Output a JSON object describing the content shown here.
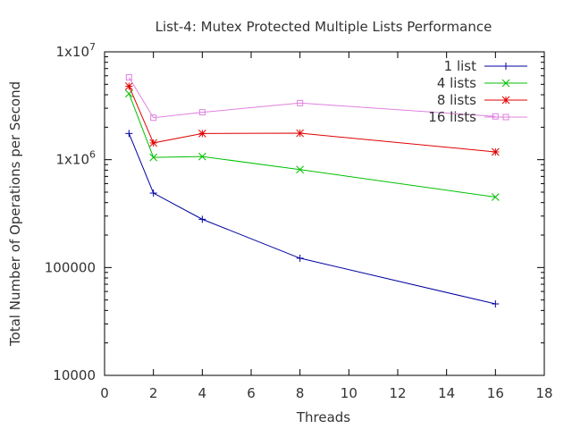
{
  "chart_data": {
    "type": "line",
    "title": "List-4: Mutex Protected Multiple Lists Performance",
    "xlabel": "Threads",
    "ylabel": "Total Number of Operations per Second",
    "xlim": [
      0,
      18
    ],
    "ylim": [
      10000,
      10000000
    ],
    "yscale": "log",
    "grid": false,
    "legend_position": "top-right",
    "x_ticks": [
      {
        "value": 0,
        "label": "0"
      },
      {
        "value": 2,
        "label": "2"
      },
      {
        "value": 4,
        "label": "4"
      },
      {
        "value": 6,
        "label": "6"
      },
      {
        "value": 8,
        "label": "8"
      },
      {
        "value": 10,
        "label": "10"
      },
      {
        "value": 12,
        "label": "12"
      },
      {
        "value": 14,
        "label": "14"
      },
      {
        "value": 16,
        "label": "16"
      },
      {
        "value": 18,
        "label": "18"
      }
    ],
    "y_ticks": [
      {
        "value": 10000,
        "label": "10000",
        "sup": ""
      },
      {
        "value": 100000,
        "label": "100000",
        "sup": ""
      },
      {
        "value": 1000000,
        "label": "1x10",
        "sup": "6"
      },
      {
        "value": 10000000,
        "label": "1x10",
        "sup": "7"
      }
    ],
    "x": [
      1,
      2,
      4,
      8,
      16
    ],
    "series": [
      {
        "name": "1 list",
        "color": "#0000a0",
        "marker": "plus",
        "values": [
          1750000,
          490000,
          280000,
          122000,
          46000
        ]
      },
      {
        "name": "4 lists",
        "color": "#00c000",
        "marker": "cross",
        "values": [
          4100000,
          1050000,
          1070000,
          810000,
          450000
        ]
      },
      {
        "name": "8 lists",
        "color": "#e00000",
        "marker": "star",
        "values": [
          4800000,
          1430000,
          1750000,
          1760000,
          1180000
        ]
      },
      {
        "name": "16 lists",
        "color": "#e080e0",
        "marker": "square",
        "values": [
          5800000,
          2450000,
          2750000,
          3350000,
          2520000
        ]
      }
    ]
  }
}
